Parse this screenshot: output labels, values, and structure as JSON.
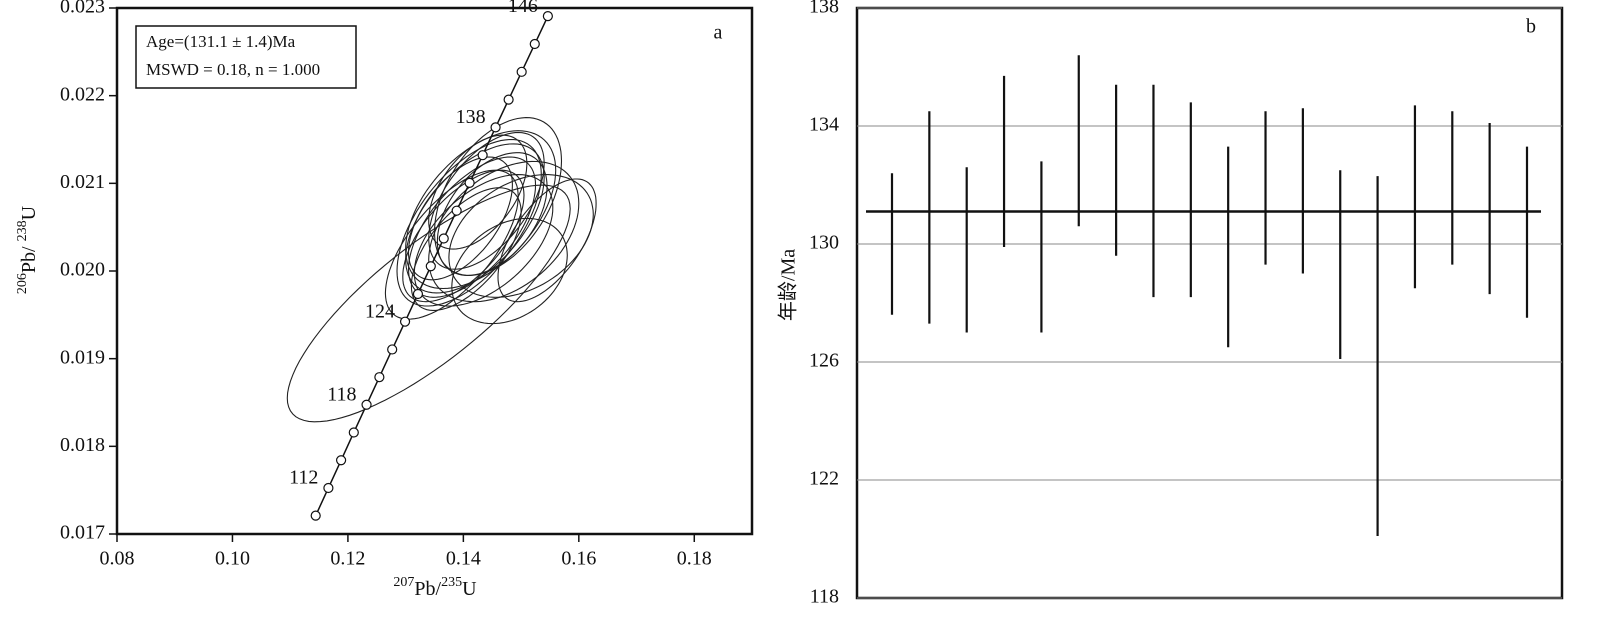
{
  "chart_data": [
    {
      "type": "concordia",
      "label": "a",
      "x_label": "207Pb/235U",
      "y_label": "206Pb/ 238U",
      "xlim": [
        0.08,
        0.19
      ],
      "ylim": [
        0.017,
        0.023
      ],
      "xticks": [
        0.08,
        {
          "value": 0.1,
          "label": "0.10"
        },
        0.12,
        0.14,
        0.16,
        0.18
      ],
      "yticks": [
        0.017,
        0.018,
        0.019,
        {
          "value": 0.02,
          "label": "0.020"
        },
        0.021,
        0.022,
        0.023
      ],
      "annotations": [
        "Age=(131.1 ± 1.4)Ma",
        "MSWD = 0.18, n = 1.000"
      ],
      "concordia": {
        "x": [
          0.11442,
          0.11662,
          0.11882,
          0.12102,
          0.12323,
          0.12545,
          0.12767,
          0.1299,
          0.13213,
          0.13436,
          0.1366,
          0.13884,
          0.14108,
          0.14334,
          0.14558,
          0.14784,
          0.1501,
          0.15237,
          0.15464
        ],
        "y": [
          0.01721,
          0.017525,
          0.017841,
          0.018158,
          0.018474,
          0.018789,
          0.019105,
          0.019422,
          0.019738,
          0.020054,
          0.020371,
          0.020688,
          0.021005,
          0.021321,
          0.021638,
          0.021955,
          0.022272,
          0.022589,
          0.022907
        ],
        "labels": [
          null,
          112,
          null,
          null,
          118,
          null,
          null,
          124,
          null,
          null,
          null,
          null,
          null,
          null,
          138,
          null,
          null,
          null,
          146
        ]
      },
      "ellipses": {
        "x": [
          0.134,
          0.142,
          0.1415,
          0.143,
          0.14,
          0.144,
          0.141,
          0.145,
          0.147,
          0.15,
          0.148,
          0.138,
          0.1395,
          0.1425,
          0.1405,
          0.146,
          0.1435,
          0.1545
        ],
        "y": [
          0.01963,
          0.0206,
          0.0205,
          0.0207,
          0.0204,
          0.0208,
          0.02055,
          0.02065,
          0.02045,
          0.0204,
          0.02,
          0.0203,
          0.0206,
          0.0209,
          0.02025,
          0.02085,
          0.02035,
          0.02035
        ],
        "x_err": [
          0.0245,
          0.012,
          0.011,
          0.013,
          0.0105,
          0.01,
          0.0125,
          0.0095,
          0.013,
          0.0125,
          0.01,
          0.0115,
          0.009,
          0.0085,
          0.0095,
          0.011,
          0.012,
          0.0085
        ],
        "y_err": [
          0.00135,
          0.00085,
          0.0008,
          0.0009,
          0.00075,
          0.00078,
          0.00095,
          0.0007,
          0.0008,
          0.0007,
          0.0006,
          0.00085,
          0.0007,
          0.00065,
          0.0007,
          0.0009,
          0.00075,
          0.0007
        ],
        "rho": [
          0.8,
          0.55,
          0.6,
          0.5,
          0.62,
          0.55,
          0.58,
          0.45,
          0.4,
          0.35,
          0.3,
          0.65,
          0.55,
          0.5,
          0.6,
          0.45,
          0.5,
          0.6
        ]
      }
    },
    {
      "type": "errorbar",
      "label": "b",
      "y_label": "年龄/Ma",
      "ylim": [
        118,
        138
      ],
      "yticks": [
        118,
        122,
        126,
        130,
        134,
        138
      ],
      "grid": true,
      "values": [
        130.0,
        130.9,
        129.8,
        132.8,
        129.9,
        133.5,
        132.5,
        131.8,
        131.5,
        129.9,
        131.9,
        131.8,
        129.3,
        126.2,
        131.6,
        131.9,
        131.2,
        130.4
      ],
      "errors": [
        2.4,
        3.6,
        2.8,
        2.9,
        2.9,
        2.9,
        2.9,
        3.6,
        3.3,
        3.4,
        2.6,
        2.8,
        3.2,
        6.1,
        3.1,
        2.6,
        2.9,
        2.9
      ],
      "mean": 131.1
    }
  ]
}
